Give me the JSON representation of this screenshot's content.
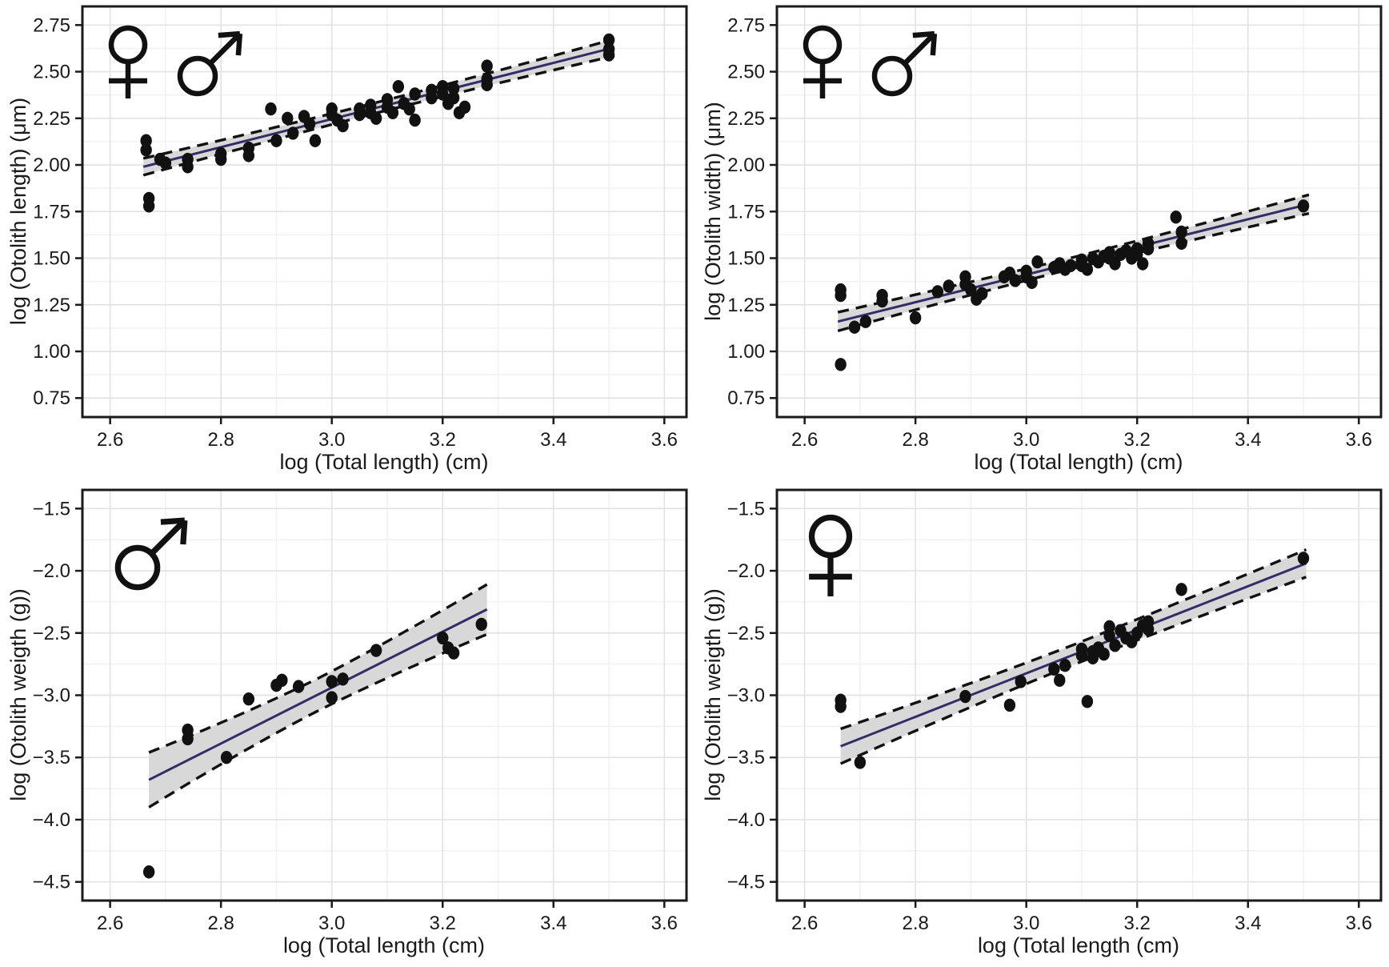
{
  "figure": {
    "background": "#ffffff",
    "rows": 2,
    "cols": 2
  },
  "colors": {
    "point": "#111111",
    "regression_line": "#312d66",
    "ci_band": "#d8d8d8",
    "ci_edge": "#111111",
    "panel_border": "#1a1a1a",
    "grid_major": "#e3e3e3",
    "grid_minor": "#f1f1f1",
    "text": "#1a1a1a"
  },
  "symbol_glyphs": {
    "female": "♀",
    "male": "♂"
  },
  "chart_data": [
    {
      "type": "scatter",
      "position": "top-left",
      "xlabel": "log (Total length) (cm)",
      "ylabel": "log (Otolith length) (μm)",
      "legend_symbols": [
        "female",
        "male"
      ],
      "xlim": [
        2.55,
        3.64
      ],
      "ylim": [
        0.648,
        2.85
      ],
      "xticks": [
        2.6,
        2.8,
        3.0,
        3.2,
        3.4,
        3.6
      ],
      "xtick_labels": [
        "2.6",
        "2.8",
        "3.0",
        "3.2",
        "3.4",
        "3.6"
      ],
      "yticks": [
        0.75,
        1.0,
        1.25,
        1.5,
        1.75,
        2.0,
        2.25,
        2.5,
        2.75
      ],
      "ytick_labels": [
        "0.75",
        "1.00",
        "1.25",
        "1.50",
        "1.75",
        "2.00",
        "2.25",
        "2.50",
        "2.75"
      ],
      "grid": true,
      "points": [
        [
          2.665,
          2.13
        ],
        [
          2.665,
          2.08
        ],
        [
          2.67,
          1.82
        ],
        [
          2.67,
          1.78
        ],
        [
          2.69,
          2.03
        ],
        [
          2.7,
          2.01
        ],
        [
          2.74,
          2.03
        ],
        [
          2.74,
          1.99
        ],
        [
          2.8,
          2.06
        ],
        [
          2.8,
          2.03
        ],
        [
          2.85,
          2.09
        ],
        [
          2.85,
          2.05
        ],
        [
          2.89,
          2.3
        ],
        [
          2.9,
          2.13
        ],
        [
          2.92,
          2.25
        ],
        [
          2.93,
          2.17
        ],
        [
          2.95,
          2.26
        ],
        [
          2.96,
          2.22
        ],
        [
          2.97,
          2.13
        ],
        [
          3.0,
          2.3
        ],
        [
          3.0,
          2.27
        ],
        [
          3.01,
          2.24
        ],
        [
          3.02,
          2.21
        ],
        [
          3.05,
          2.3
        ],
        [
          3.05,
          2.27
        ],
        [
          3.07,
          2.32
        ],
        [
          3.07,
          2.28
        ],
        [
          3.08,
          2.25
        ],
        [
          3.1,
          2.35
        ],
        [
          3.1,
          2.31
        ],
        [
          3.11,
          2.28
        ],
        [
          3.12,
          2.42
        ],
        [
          3.13,
          2.33
        ],
        [
          3.14,
          2.3
        ],
        [
          3.15,
          2.38
        ],
        [
          3.15,
          2.24
        ],
        [
          3.18,
          2.4
        ],
        [
          3.18,
          2.36
        ],
        [
          3.2,
          2.42
        ],
        [
          3.2,
          2.38
        ],
        [
          3.21,
          2.33
        ],
        [
          3.22,
          2.41
        ],
        [
          3.22,
          2.36
        ],
        [
          3.23,
          2.28
        ],
        [
          3.24,
          2.31
        ],
        [
          3.28,
          2.53
        ],
        [
          3.28,
          2.46
        ],
        [
          3.28,
          2.43
        ],
        [
          3.5,
          2.67
        ],
        [
          3.5,
          2.62
        ],
        [
          3.5,
          2.59
        ]
      ],
      "trend": {
        "x_start": 2.66,
        "y_start": 1.99,
        "x_end": 3.51,
        "y_end": 2.63
      },
      "ci": {
        "half_width_start": 0.045,
        "half_width_mid": 0.028,
        "half_width_end": 0.045
      }
    },
    {
      "type": "scatter",
      "position": "top-right",
      "xlabel": "log (Total length) (cm)",
      "ylabel": "log (Otolith width) (μm)",
      "legend_symbols": [
        "female",
        "male"
      ],
      "xlim": [
        2.55,
        3.64
      ],
      "ylim": [
        0.648,
        2.85
      ],
      "xticks": [
        2.6,
        2.8,
        3.0,
        3.2,
        3.4,
        3.6
      ],
      "xtick_labels": [
        "2.6",
        "2.8",
        "3.0",
        "3.2",
        "3.4",
        "3.6"
      ],
      "yticks": [
        0.75,
        1.0,
        1.25,
        1.5,
        1.75,
        2.0,
        2.25,
        2.5,
        2.75
      ],
      "ytick_labels": [
        "0.75",
        "1.00",
        "1.25",
        "1.50",
        "1.75",
        "2.00",
        "2.25",
        "2.50",
        "2.75"
      ],
      "grid": true,
      "points": [
        [
          2.665,
          1.33
        ],
        [
          2.665,
          1.3
        ],
        [
          2.665,
          0.93
        ],
        [
          2.69,
          1.13
        ],
        [
          2.71,
          1.16
        ],
        [
          2.74,
          1.3
        ],
        [
          2.74,
          1.27
        ],
        [
          2.8,
          1.18
        ],
        [
          2.84,
          1.32
        ],
        [
          2.86,
          1.35
        ],
        [
          2.89,
          1.4
        ],
        [
          2.89,
          1.36
        ],
        [
          2.9,
          1.33
        ],
        [
          2.91,
          1.28
        ],
        [
          2.92,
          1.31
        ],
        [
          2.96,
          1.4
        ],
        [
          2.97,
          1.42
        ],
        [
          2.98,
          1.38
        ],
        [
          3.0,
          1.43
        ],
        [
          3.0,
          1.4
        ],
        [
          3.01,
          1.37
        ],
        [
          3.02,
          1.48
        ],
        [
          3.05,
          1.45
        ],
        [
          3.06,
          1.47
        ],
        [
          3.07,
          1.44
        ],
        [
          3.08,
          1.46
        ],
        [
          3.1,
          1.49
        ],
        [
          3.1,
          1.46
        ],
        [
          3.11,
          1.44
        ],
        [
          3.12,
          1.5
        ],
        [
          3.13,
          1.48
        ],
        [
          3.14,
          1.51
        ],
        [
          3.15,
          1.53
        ],
        [
          3.15,
          1.5
        ],
        [
          3.16,
          1.47
        ],
        [
          3.17,
          1.52
        ],
        [
          3.18,
          1.54
        ],
        [
          3.19,
          1.5
        ],
        [
          3.2,
          1.55
        ],
        [
          3.2,
          1.52
        ],
        [
          3.21,
          1.47
        ],
        [
          3.22,
          1.58
        ],
        [
          3.22,
          1.55
        ],
        [
          3.27,
          1.72
        ],
        [
          3.28,
          1.64
        ],
        [
          3.28,
          1.58
        ],
        [
          3.5,
          1.78
        ]
      ],
      "trend": {
        "x_start": 2.66,
        "y_start": 1.16,
        "x_end": 3.51,
        "y_end": 1.79
      },
      "ci": {
        "half_width_start": 0.05,
        "half_width_mid": 0.03,
        "half_width_end": 0.05
      }
    },
    {
      "type": "scatter",
      "position": "bottom-left",
      "xlabel": "log (Total length (cm)",
      "ylabel": "log (Otolith weigth (g))",
      "legend_symbols": [
        "male"
      ],
      "xlim": [
        2.55,
        3.64
      ],
      "ylim": [
        -4.65,
        -1.35
      ],
      "xticks": [
        2.6,
        2.8,
        3.0,
        3.2,
        3.4,
        3.6
      ],
      "xtick_labels": [
        "2.6",
        "2.8",
        "3.0",
        "3.2",
        "3.4",
        "3.6"
      ],
      "yticks": [
        -4.5,
        -4.0,
        -3.5,
        -3.0,
        -2.5,
        -2.0,
        -1.5
      ],
      "ytick_labels": [
        "−4.5",
        "−4.0",
        "−3.5",
        "−3.0",
        "−2.5",
        "−2.0",
        "−1.5"
      ],
      "grid": true,
      "points": [
        [
          2.67,
          -4.42
        ],
        [
          2.74,
          -3.28
        ],
        [
          2.74,
          -3.35
        ],
        [
          2.81,
          -3.5
        ],
        [
          2.85,
          -3.03
        ],
        [
          2.9,
          -2.92
        ],
        [
          2.91,
          -2.88
        ],
        [
          2.94,
          -2.93
        ],
        [
          3.0,
          -3.02
        ],
        [
          3.0,
          -2.89
        ],
        [
          3.02,
          -2.87
        ],
        [
          3.08,
          -2.64
        ],
        [
          3.2,
          -2.54
        ],
        [
          3.21,
          -2.62
        ],
        [
          3.22,
          -2.66
        ],
        [
          3.27,
          -2.43
        ]
      ],
      "trend": {
        "x_start": 2.67,
        "y_start": -3.68,
        "x_end": 3.28,
        "y_end": -2.31
      },
      "ci": {
        "half_width_start": 0.22,
        "half_width_mid": 0.13,
        "half_width_end": 0.2
      }
    },
    {
      "type": "scatter",
      "position": "bottom-right",
      "xlabel": "log (Total length (cm)",
      "ylabel": "log (Otolith weigth (g))",
      "legend_symbols": [
        "female"
      ],
      "xlim": [
        2.55,
        3.64
      ],
      "ylim": [
        -4.65,
        -1.35
      ],
      "xticks": [
        2.6,
        2.8,
        3.0,
        3.2,
        3.4,
        3.6
      ],
      "xtick_labels": [
        "2.6",
        "2.8",
        "3.0",
        "3.2",
        "3.4",
        "3.6"
      ],
      "yticks": [
        -4.5,
        -4.0,
        -3.5,
        -3.0,
        -2.5,
        -2.0,
        -1.5
      ],
      "ytick_labels": [
        "−4.5",
        "−4.0",
        "−3.5",
        "−3.0",
        "−2.5",
        "−2.0",
        "−1.5"
      ],
      "grid": true,
      "points": [
        [
          2.665,
          -3.04
        ],
        [
          2.665,
          -3.09
        ],
        [
          2.7,
          -3.54
        ],
        [
          2.89,
          -3.01
        ],
        [
          2.97,
          -3.08
        ],
        [
          2.99,
          -2.89
        ],
        [
          3.05,
          -2.79
        ],
        [
          3.06,
          -2.88
        ],
        [
          3.07,
          -2.76
        ],
        [
          3.1,
          -2.63
        ],
        [
          3.1,
          -2.68
        ],
        [
          3.11,
          -3.05
        ],
        [
          3.12,
          -2.65
        ],
        [
          3.12,
          -2.7
        ],
        [
          3.13,
          -2.62
        ],
        [
          3.14,
          -2.67
        ],
        [
          3.15,
          -2.45
        ],
        [
          3.15,
          -2.52
        ],
        [
          3.16,
          -2.6
        ],
        [
          3.17,
          -2.48
        ],
        [
          3.18,
          -2.54
        ],
        [
          3.19,
          -2.57
        ],
        [
          3.2,
          -2.5
        ],
        [
          3.21,
          -2.44
        ],
        [
          3.22,
          -2.41
        ],
        [
          3.22,
          -2.47
        ],
        [
          3.28,
          -2.15
        ],
        [
          3.5,
          -1.9
        ]
      ],
      "trend": {
        "x_start": 2.665,
        "y_start": -3.41,
        "x_end": 3.505,
        "y_end": -1.94
      },
      "ci": {
        "half_width_start": 0.14,
        "half_width_mid": 0.08,
        "half_width_end": 0.11
      }
    }
  ]
}
